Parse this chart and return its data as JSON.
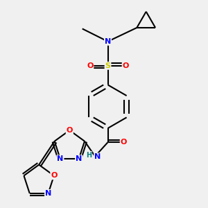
{
  "background_color": "#f0f0f0",
  "bond_color": "#000000",
  "atom_colors": {
    "N": "#0000ff",
    "O": "#ff0000",
    "S": "#cccc00",
    "H": "#008080",
    "C": "#000000"
  }
}
